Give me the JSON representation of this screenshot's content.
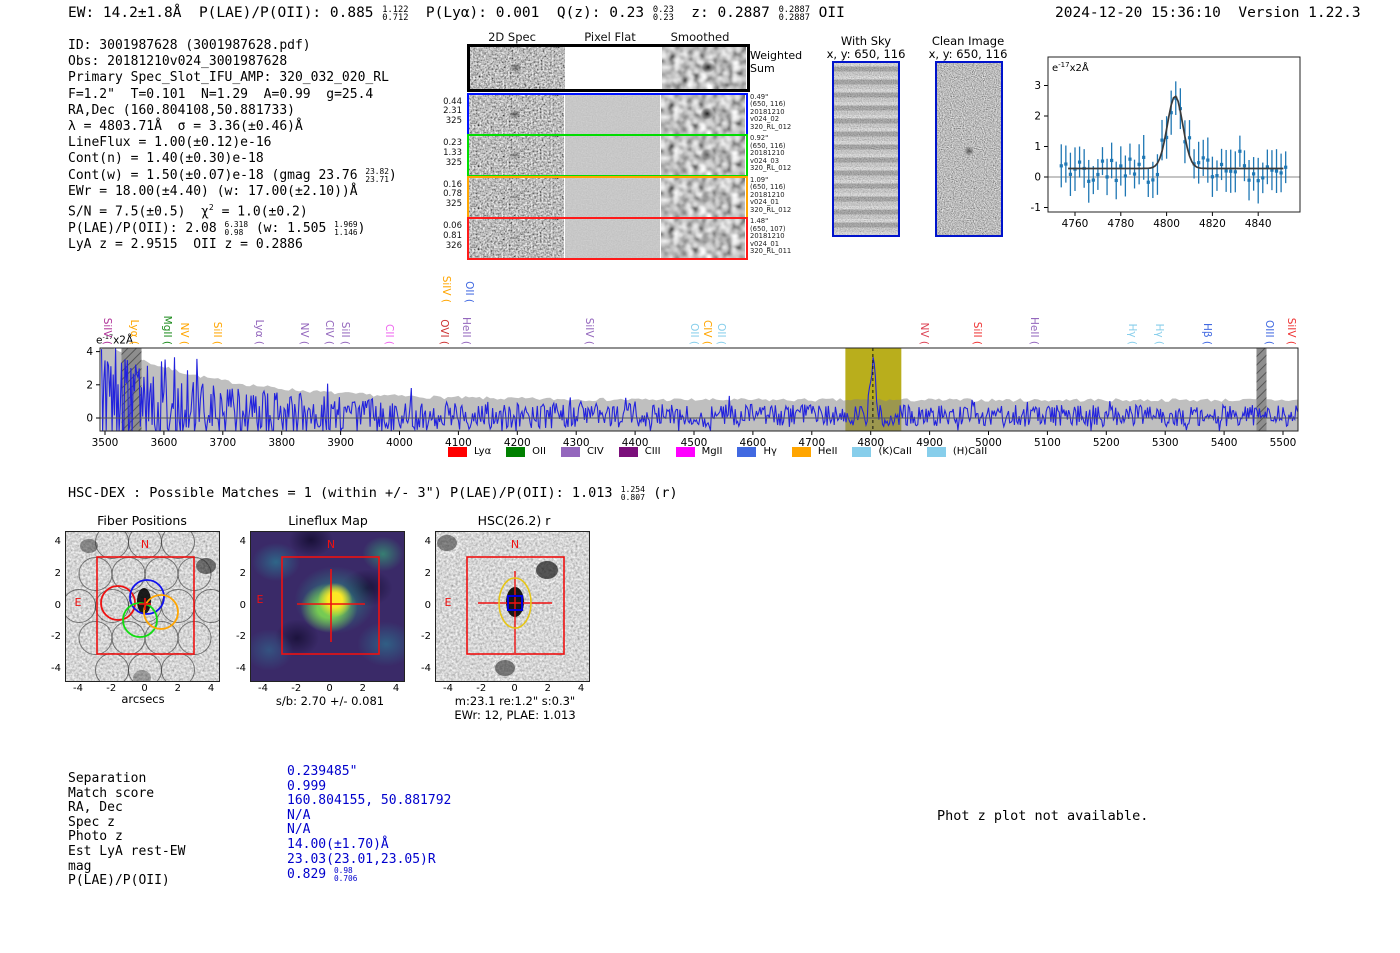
{
  "header": {
    "left_segments": [
      {
        "t": "EW: 14.2±1.8Å  P(LAE)/P(OII): 0.885 "
      },
      {
        "frac": [
          "1.122",
          "0.712"
        ]
      },
      {
        "t": "  P(Lyα): 0.001  Q(z): 0.23 "
      },
      {
        "frac": [
          "0.23",
          "0.23"
        ]
      },
      {
        "t": "  z: 0.2887 "
      },
      {
        "frac": [
          "0.2887",
          "0.2887"
        ]
      },
      {
        "t": " OII"
      }
    ],
    "datetime": "2024-12-20 15:36:10",
    "version": "Version 1.22.3"
  },
  "info_block": {
    "lines": [
      [
        {
          "t": "ID: 3001987628 (3001987628.pdf)"
        }
      ],
      [
        {
          "t": "Obs: 20181210v024_3001987628"
        }
      ],
      [
        {
          "t": "Primary Spec_Slot_IFU_AMP: 320_032_020_RL"
        }
      ],
      [
        {
          "t": "F=1.2\"  T=0.101  N=1.29  A=0.99  g=25.4"
        }
      ],
      [
        {
          "t": "RA,Dec (160.804108,50.881733)"
        }
      ],
      [
        {
          "t": "λ = 4803.71Å  σ = 3.36(±0.46)Å"
        }
      ],
      [
        {
          "t": "LineFlux = 1.00(±0.12)e-16"
        }
      ],
      [
        {
          "t": "Cont(n) = 1.40(±0.30)e-18"
        }
      ],
      [
        {
          "t": "Cont(w) = 1.50(±0.07)e-18 (gmag 23.76 "
        },
        {
          "frac": [
            "23.82",
            "23.71"
          ]
        },
        {
          "t": ")"
        }
      ],
      [
        {
          "t": "EWr = 18.00(±4.40) (w: 17.00(±2.10))Å"
        }
      ],
      [
        {
          "t": "S/N = 7.5(±0.5)  χ"
        },
        {
          "sup": "2"
        },
        {
          "t": " = 1.0(±0.2)"
        }
      ],
      [
        {
          "t": "P(LAE)/P(OII): 2.08 "
        },
        {
          "frac": [
            "6.318",
            "0.98"
          ]
        },
        {
          "t": " (w: 1.505 "
        },
        {
          "frac": [
            "1.969",
            "1.146"
          ]
        },
        {
          "t": ")"
        }
      ],
      [
        {
          "t": "LyA z = 2.9515  OII z = 0.2886"
        }
      ]
    ]
  },
  "spec2d": {
    "col_titles": [
      "2D Spec",
      "Pixel Flat",
      "Smoothed"
    ],
    "weighted_label": [
      "Weighted",
      "Sum"
    ],
    "rows": [
      {
        "color": "#0013ff",
        "left": [
          "0.44",
          "2.31",
          "325"
        ],
        "right": [
          "0.49\"",
          "(650, 116)",
          "20181210",
          "v024_02",
          "320_RL_012"
        ],
        "blob": 0.85,
        "blob2d": 0.5
      },
      {
        "color": "#00dd00",
        "left": [
          "0.23",
          "1.33",
          "325"
        ],
        "right": [
          "0.92\"",
          "(650, 116)",
          "20181210",
          "v024_03",
          "320_RL_012"
        ],
        "blob": 0.55,
        "blob2d": 0.3
      },
      {
        "color": "#ffa500",
        "left": [
          "0.16",
          "0.78",
          "325"
        ],
        "right": [
          "1.09\"",
          "(650, 116)",
          "20181210",
          "v024_01",
          "320_RL_012"
        ],
        "blob": 0.3,
        "blob2d": 0.15
      },
      {
        "color": "#ff1a1a",
        "left": [
          "0.06",
          "0.81",
          "326"
        ],
        "right": [
          "1.48\"",
          "(650, 107)",
          "20181210",
          "v024_01",
          "320_RL_011"
        ],
        "blob": 0.25,
        "blob2d": 0.1
      }
    ]
  },
  "cutouts": {
    "with_sky": {
      "title": "With Sky",
      "subtitle": "x, y: 650, 116"
    },
    "clean_image": {
      "title": "Clean Image",
      "subtitle": "x, y: 650, 116"
    },
    "border_color": "#0013cc"
  },
  "chart_data": [
    {
      "id": "line_fit_plot",
      "type": "scatter",
      "unit_label": {
        "base": "e",
        "exp": "-17",
        "rest": "x2Å"
      },
      "x_ticks": [
        4760,
        4780,
        4800,
        4820,
        4840
      ],
      "y_ticks": [
        -1,
        0,
        1,
        2,
        3
      ],
      "xlim": [
        4748,
        4858
      ],
      "ylim": [
        -1.15,
        3.75
      ],
      "fit": {
        "center": 4803.71,
        "sigma": 3.36,
        "peak": 2.65,
        "baseline": 0.28
      },
      "marker_color": "#1f77b4",
      "fit_color": "#3a3a3a"
    },
    {
      "id": "full_spectrum",
      "type": "line",
      "unit_label": {
        "base": "e",
        "exp": "-17",
        "rest": "x2Å"
      },
      "x_ticks": [
        3500,
        3600,
        3700,
        3800,
        3900,
        4000,
        4100,
        4200,
        4300,
        4400,
        4500,
        4600,
        4700,
        4800,
        4900,
        5000,
        5100,
        5200,
        5300,
        5400,
        5500
      ],
      "y_ticks": [
        0,
        2,
        4
      ],
      "xlim": [
        3491,
        5525
      ],
      "ylim": [
        -0.78,
        4.22
      ],
      "emission_line": {
        "center": 4803.71,
        "peak": 3.1
      },
      "highlight_band": {
        "x0": 4757,
        "x1": 4852,
        "color": "#b9ae1c"
      },
      "masked_bands": [
        {
          "x0": 3528,
          "x1": 3562
        },
        {
          "x0": 5455,
          "x1": 5472
        }
      ],
      "line_color": "#2222dd",
      "envelope_note": "gray error envelope ~4 at 3500A decaying to ~1.1 beyond 4000A",
      "line_labels": [
        {
          "text": "SiIV",
          "x": 3505,
          "color": "#b03399"
        },
        {
          "text": "Lyα",
          "x": 3551,
          "color": "#ffa500"
        },
        {
          "text": "MgII",
          "x": 3607,
          "color": "#1e8c1e"
        },
        {
          "text": "NV",
          "x": 3636,
          "color": "#ffa500"
        },
        {
          "text": "SiII",
          "x": 3692,
          "color": "#ffa500"
        },
        {
          "text": "Lyα",
          "x": 3763,
          "color": "#9467bd"
        },
        {
          "text": "NV",
          "x": 3840,
          "color": "#9467bd"
        },
        {
          "text": "CIV",
          "x": 3882,
          "color": "#9467bd"
        },
        {
          "text": "SiII",
          "x": 3909,
          "color": "#9467bd"
        },
        {
          "text": "CII",
          "x": 3984,
          "color": "#ee66ee"
        },
        {
          "text": "OVI",
          "x": 4077,
          "color": "#cc3333"
        },
        {
          "text": "SiIV",
          "x": 4081,
          "color": "#ffa500",
          "lift": 42
        },
        {
          "text": "HeII",
          "x": 4115,
          "color": "#9467bd"
        },
        {
          "text": "OII",
          "x": 4119,
          "color": "#4169e1",
          "lift": 42
        },
        {
          "text": "SiIV",
          "x": 4323,
          "color": "#9467bd"
        },
        {
          "text": "OII",
          "x": 4502,
          "color": "#87ceeb"
        },
        {
          "text": "CIV",
          "x": 4524,
          "color": "#ffa500"
        },
        {
          "text": "OII",
          "x": 4547,
          "color": "#87ceeb"
        },
        {
          "text": "NV",
          "x": 4892,
          "color": "#dc4455"
        },
        {
          "text": "SiII",
          "x": 4982,
          "color": "#ee3333"
        },
        {
          "text": "HeII",
          "x": 5079,
          "color": "#9467bd"
        },
        {
          "text": "Hγ",
          "x": 5245,
          "color": "#87ceeb"
        },
        {
          "text": "Hγ",
          "x": 5291,
          "color": "#87ceeb"
        },
        {
          "text": "Hβ",
          "x": 5372,
          "color": "#4169e1"
        },
        {
          "text": "OIII",
          "x": 5478,
          "color": "#4169e1"
        },
        {
          "text": "SiIV",
          "x": 5515,
          "color": "#ee3333"
        }
      ],
      "legend": [
        {
          "label": "Lyα",
          "color": "#ff0000"
        },
        {
          "label": "OII",
          "color": "#008000"
        },
        {
          "label": "CIV",
          "color": "#9467bd"
        },
        {
          "label": "CIII",
          "color": "#7b0f7b"
        },
        {
          "label": "MgII",
          "color": "#ff00ff"
        },
        {
          "label": "Hγ",
          "color": "#4169e1"
        },
        {
          "label": "HeII",
          "color": "#ffa500"
        },
        {
          "label": "(K)CaII",
          "color": "#87ceeb"
        },
        {
          "label": "(H)CaII",
          "color": "#87ceeb"
        }
      ]
    }
  ],
  "hsc_dex": {
    "segments": [
      {
        "t": "HSC-DEX : Possible Matches = 1 (within +/- 3\")  P(LAE)/P(OII): 1.013 "
      },
      {
        "frac": [
          "1.254",
          "0.807"
        ]
      },
      {
        "t": " (r)"
      }
    ]
  },
  "panels": {
    "fiber_positions": {
      "title": "Fiber Positions",
      "xlabel": "arcsecs",
      "x_ticks": [
        -4,
        -2,
        0,
        2,
        4
      ],
      "y_ticks": [
        4,
        2,
        0,
        -2,
        -4
      ],
      "compass": {
        "north": "N",
        "east": "E"
      }
    },
    "lineflux_map": {
      "title": "Lineflux Map",
      "xlabel": "s/b: 2.70 +/- 0.081",
      "x_ticks": [
        -4,
        -2,
        0,
        2,
        4
      ],
      "y_ticks": [
        4,
        2,
        0,
        -2,
        -4
      ],
      "compass": {
        "north": "N",
        "east": "E"
      }
    },
    "hsc_r": {
      "title": "HSC(26.2) r",
      "xlabel_line1": "m:23.1 re:1.2\" s:0.3\"",
      "xlabel_line2": "EWr: 12, PLAE: 1.013",
      "x_ticks": [
        -4,
        -2,
        0,
        2,
        4
      ],
      "y_ticks": [
        4,
        2,
        0,
        -2,
        -4
      ],
      "compass": {
        "north": "N",
        "east": "E"
      }
    }
  },
  "match_table": {
    "rows": [
      {
        "label": "Separation",
        "segments": [
          {
            "t": "0.239485\""
          }
        ]
      },
      {
        "label": "Match score",
        "segments": [
          {
            "t": "0.999"
          }
        ]
      },
      {
        "label": "RA, Dec",
        "segments": [
          {
            "t": "160.804155, 50.881792"
          }
        ]
      },
      {
        "label": "Spec z",
        "segments": [
          {
            "t": "N/A"
          }
        ]
      },
      {
        "label": "Photo z",
        "segments": [
          {
            "t": "N/A"
          }
        ]
      },
      {
        "label": "Est LyA rest-EW",
        "segments": [
          {
            "t": "14.00(±1.70)Å"
          }
        ]
      },
      {
        "label": "mag",
        "segments": [
          {
            "t": "23.03(23.01,23.05)R"
          }
        ]
      },
      {
        "label": "P(LAE)/P(OII)",
        "segments": [
          {
            "t": "0.829 "
          },
          {
            "frac": [
              "0.98",
              "0.706"
            ]
          }
        ]
      }
    ]
  },
  "phot_z_note": "Phot z plot not available."
}
